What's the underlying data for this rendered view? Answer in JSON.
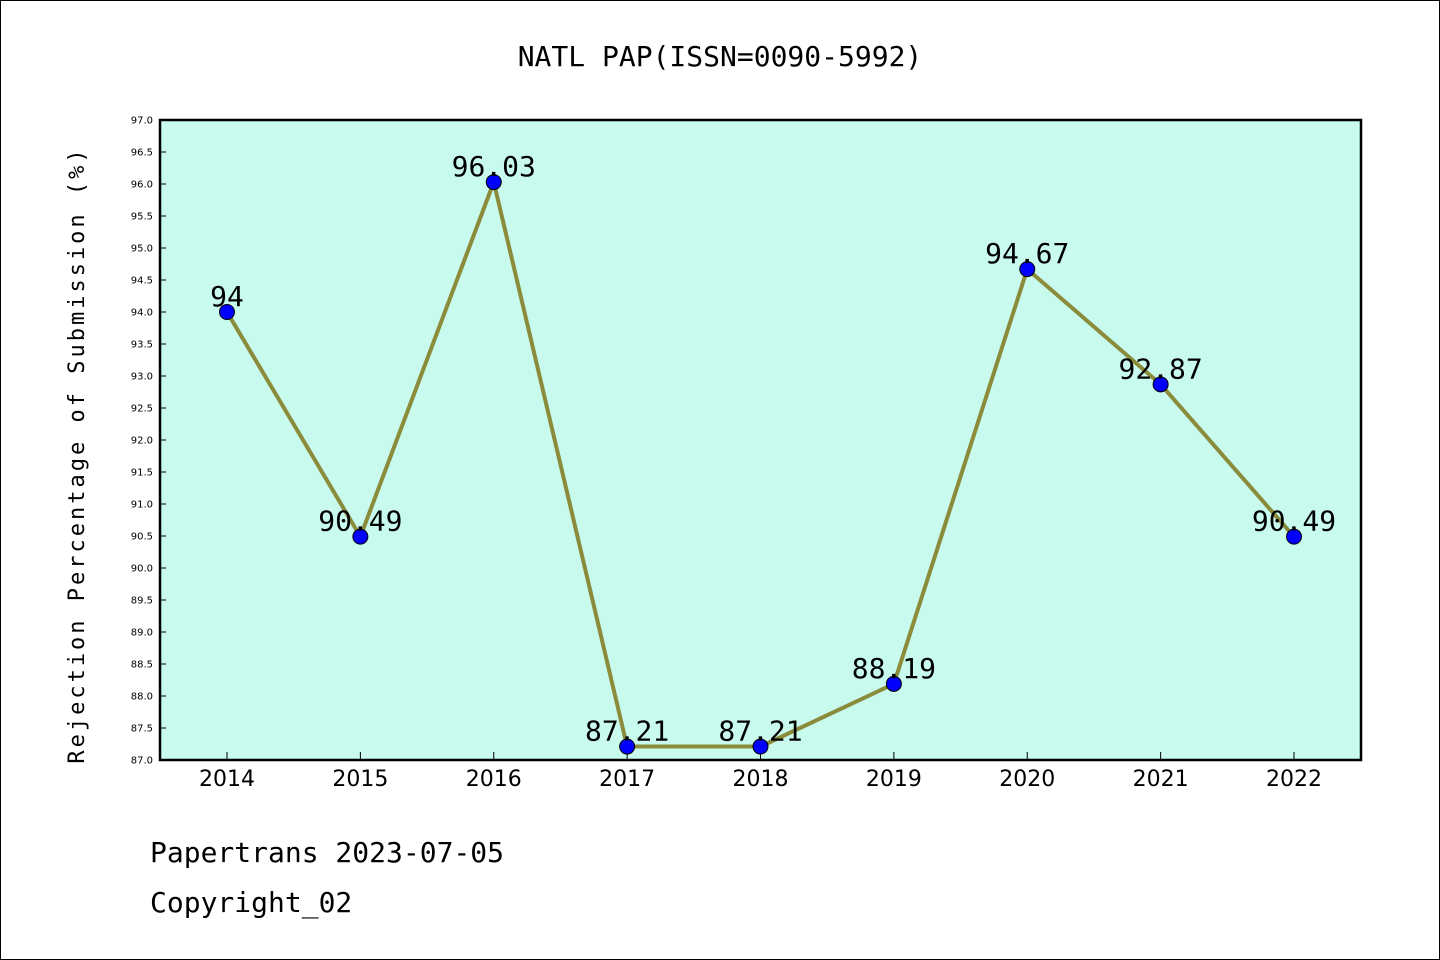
{
  "chart_data": {
    "type": "line",
    "title": "NATL PAP(ISSN=0090-5992)",
    "xlabel": "",
    "ylabel": "Rejection Percentage of Submission (%)",
    "categories": [
      "2014",
      "2015",
      "2016",
      "2017",
      "2018",
      "2019",
      "2020",
      "2021",
      "2022"
    ],
    "series": [
      {
        "values": [
          94,
          90.49,
          96.03,
          87.21,
          87.21,
          88.19,
          94.67,
          92.87,
          90.49
        ],
        "labels": [
          "94",
          "90.49",
          "96.03",
          "87.21",
          "87.21",
          "88.19",
          "94.67",
          "92.87",
          "90.49"
        ]
      }
    ],
    "ylim": [
      87.0,
      97.0
    ],
    "ytick_step": 0.5,
    "grid": false,
    "legend": "none",
    "colors": {
      "plot_background": "#c8fbee",
      "line": "#8b8b3c",
      "marker": "#0000ff"
    }
  },
  "footer": {
    "source": "Papertrans 2023-07-05",
    "copyright": "Copyright_02"
  }
}
